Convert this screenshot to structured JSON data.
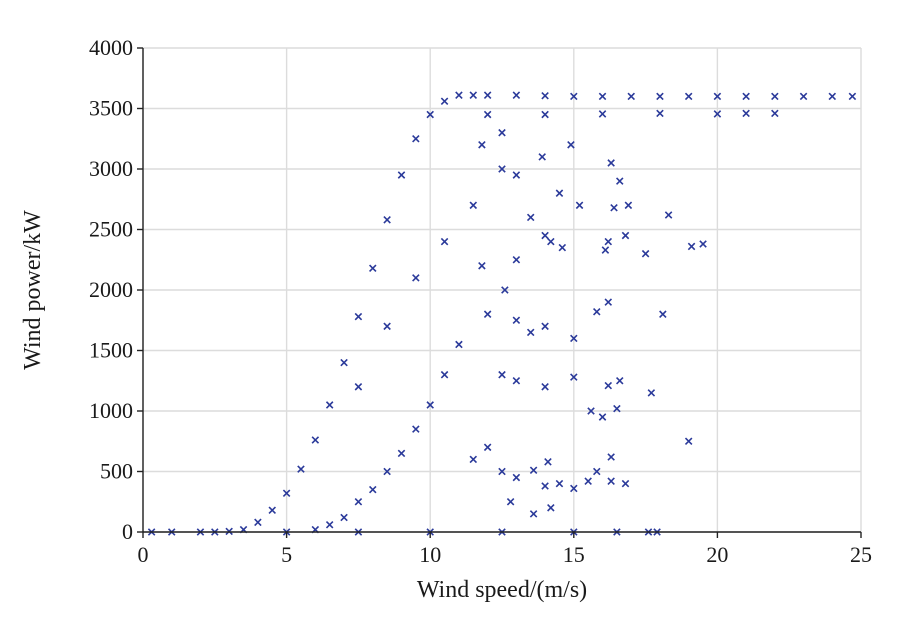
{
  "chart_data": {
    "type": "scatter",
    "title": "",
    "xlabel": "Wind speed/(m/s)",
    "ylabel": "Wind power/kW",
    "xlim": [
      0,
      25
    ],
    "ylim": [
      0,
      4000
    ],
    "xticks": [
      0,
      5,
      10,
      15,
      20,
      25
    ],
    "yticks": [
      0,
      500,
      1000,
      1500,
      2000,
      2500,
      3000,
      3500,
      4000
    ],
    "grid": true,
    "legend": "none",
    "marker": "x",
    "color": "#2b3a9a",
    "series": [
      {
        "points": [
          [
            1.0,
            0
          ],
          [
            2.0,
            0
          ],
          [
            3.0,
            5
          ],
          [
            3.5,
            20
          ],
          [
            4.0,
            80
          ],
          [
            4.5,
            180
          ],
          [
            5.0,
            320
          ],
          [
            5.5,
            520
          ],
          [
            6.0,
            760
          ],
          [
            6.5,
            1050
          ],
          [
            7.0,
            1400
          ],
          [
            7.5,
            1780
          ],
          [
            8.0,
            2180
          ],
          [
            8.5,
            2580
          ],
          [
            9.0,
            2950
          ],
          [
            9.5,
            3250
          ],
          [
            10.0,
            3450
          ],
          [
            10.5,
            3560
          ],
          [
            11.0,
            3610
          ],
          [
            11.5,
            3610
          ],
          [
            12.0,
            3610
          ],
          [
            13.0,
            3610
          ],
          [
            14.0,
            3605
          ],
          [
            15.0,
            3600
          ],
          [
            16.0,
            3600
          ],
          [
            17.0,
            3600
          ],
          [
            18.0,
            3600
          ],
          [
            19.0,
            3600
          ],
          [
            20.0,
            3600
          ],
          [
            21.0,
            3600
          ],
          [
            22.0,
            3600
          ],
          [
            23.0,
            3600
          ],
          [
            24.0,
            3600
          ],
          [
            24.7,
            3600
          ],
          [
            12.0,
            3450
          ],
          [
            14.0,
            3450
          ],
          [
            16.0,
            3455
          ],
          [
            18.0,
            3460
          ],
          [
            20.0,
            3455
          ],
          [
            21.0,
            3460
          ],
          [
            22.0,
            3460
          ],
          [
            0.3,
            0
          ],
          [
            2.5,
            0
          ],
          [
            5.0,
            0
          ],
          [
            7.5,
            0
          ],
          [
            10.0,
            0
          ],
          [
            12.5,
            0
          ],
          [
            15.0,
            0
          ],
          [
            16.5,
            0
          ],
          [
            17.6,
            0
          ],
          [
            17.9,
            0
          ],
          [
            6.0,
            20
          ],
          [
            6.5,
            60
          ],
          [
            7.0,
            120
          ],
          [
            7.5,
            250
          ],
          [
            8.0,
            350
          ],
          [
            8.5,
            500
          ],
          [
            9.0,
            650
          ],
          [
            9.5,
            850
          ],
          [
            10.0,
            1050
          ],
          [
            10.5,
            1300
          ],
          [
            11.0,
            1550
          ],
          [
            7.5,
            1200
          ],
          [
            8.5,
            1700
          ],
          [
            9.5,
            2100
          ],
          [
            10.5,
            2400
          ],
          [
            11.5,
            2700
          ],
          [
            12.5,
            3000
          ],
          [
            11.8,
            3200
          ],
          [
            12.5,
            3300
          ],
          [
            13.0,
            2950
          ],
          [
            13.5,
            2600
          ],
          [
            13.9,
            3100
          ],
          [
            14.2,
            2400
          ],
          [
            14.5,
            2800
          ],
          [
            14.9,
            3200
          ],
          [
            15.2,
            2700
          ],
          [
            11.8,
            2200
          ],
          [
            12.6,
            2000
          ],
          [
            13.0,
            2250
          ],
          [
            14.0,
            2450
          ],
          [
            14.6,
            2350
          ],
          [
            12.0,
            1800
          ],
          [
            13.0,
            1750
          ],
          [
            13.5,
            1650
          ],
          [
            14.0,
            1700
          ],
          [
            15.0,
            1600
          ],
          [
            12.5,
            1300
          ],
          [
            13.0,
            1250
          ],
          [
            14.0,
            1200
          ],
          [
            15.0,
            1280
          ],
          [
            15.6,
            1000
          ],
          [
            11.5,
            600
          ],
          [
            12.0,
            700
          ],
          [
            12.5,
            500
          ],
          [
            13.0,
            450
          ],
          [
            14.0,
            380
          ],
          [
            14.5,
            400
          ],
          [
            15.0,
            360
          ],
          [
            15.5,
            420
          ],
          [
            15.8,
            500
          ],
          [
            12.8,
            250
          ],
          [
            13.6,
            150
          ],
          [
            14.2,
            200
          ],
          [
            16.3,
            3050
          ],
          [
            16.6,
            2900
          ],
          [
            16.4,
            2680
          ],
          [
            16.9,
            2700
          ],
          [
            16.2,
            2400
          ],
          [
            16.8,
            2450
          ],
          [
            16.1,
            2330
          ],
          [
            17.5,
            2300
          ],
          [
            18.3,
            2620
          ],
          [
            19.1,
            2360
          ],
          [
            19.5,
            2380
          ],
          [
            15.8,
            1820
          ],
          [
            16.2,
            1900
          ],
          [
            18.1,
            1800
          ],
          [
            16.2,
            1210
          ],
          [
            16.6,
            1250
          ],
          [
            17.7,
            1150
          ],
          [
            16.5,
            1020
          ],
          [
            16.0,
            950
          ],
          [
            19.0,
            750
          ],
          [
            16.3,
            620
          ],
          [
            16.3,
            420
          ],
          [
            16.8,
            400
          ],
          [
            13.6,
            510
          ],
          [
            14.1,
            580
          ]
        ]
      }
    ]
  }
}
